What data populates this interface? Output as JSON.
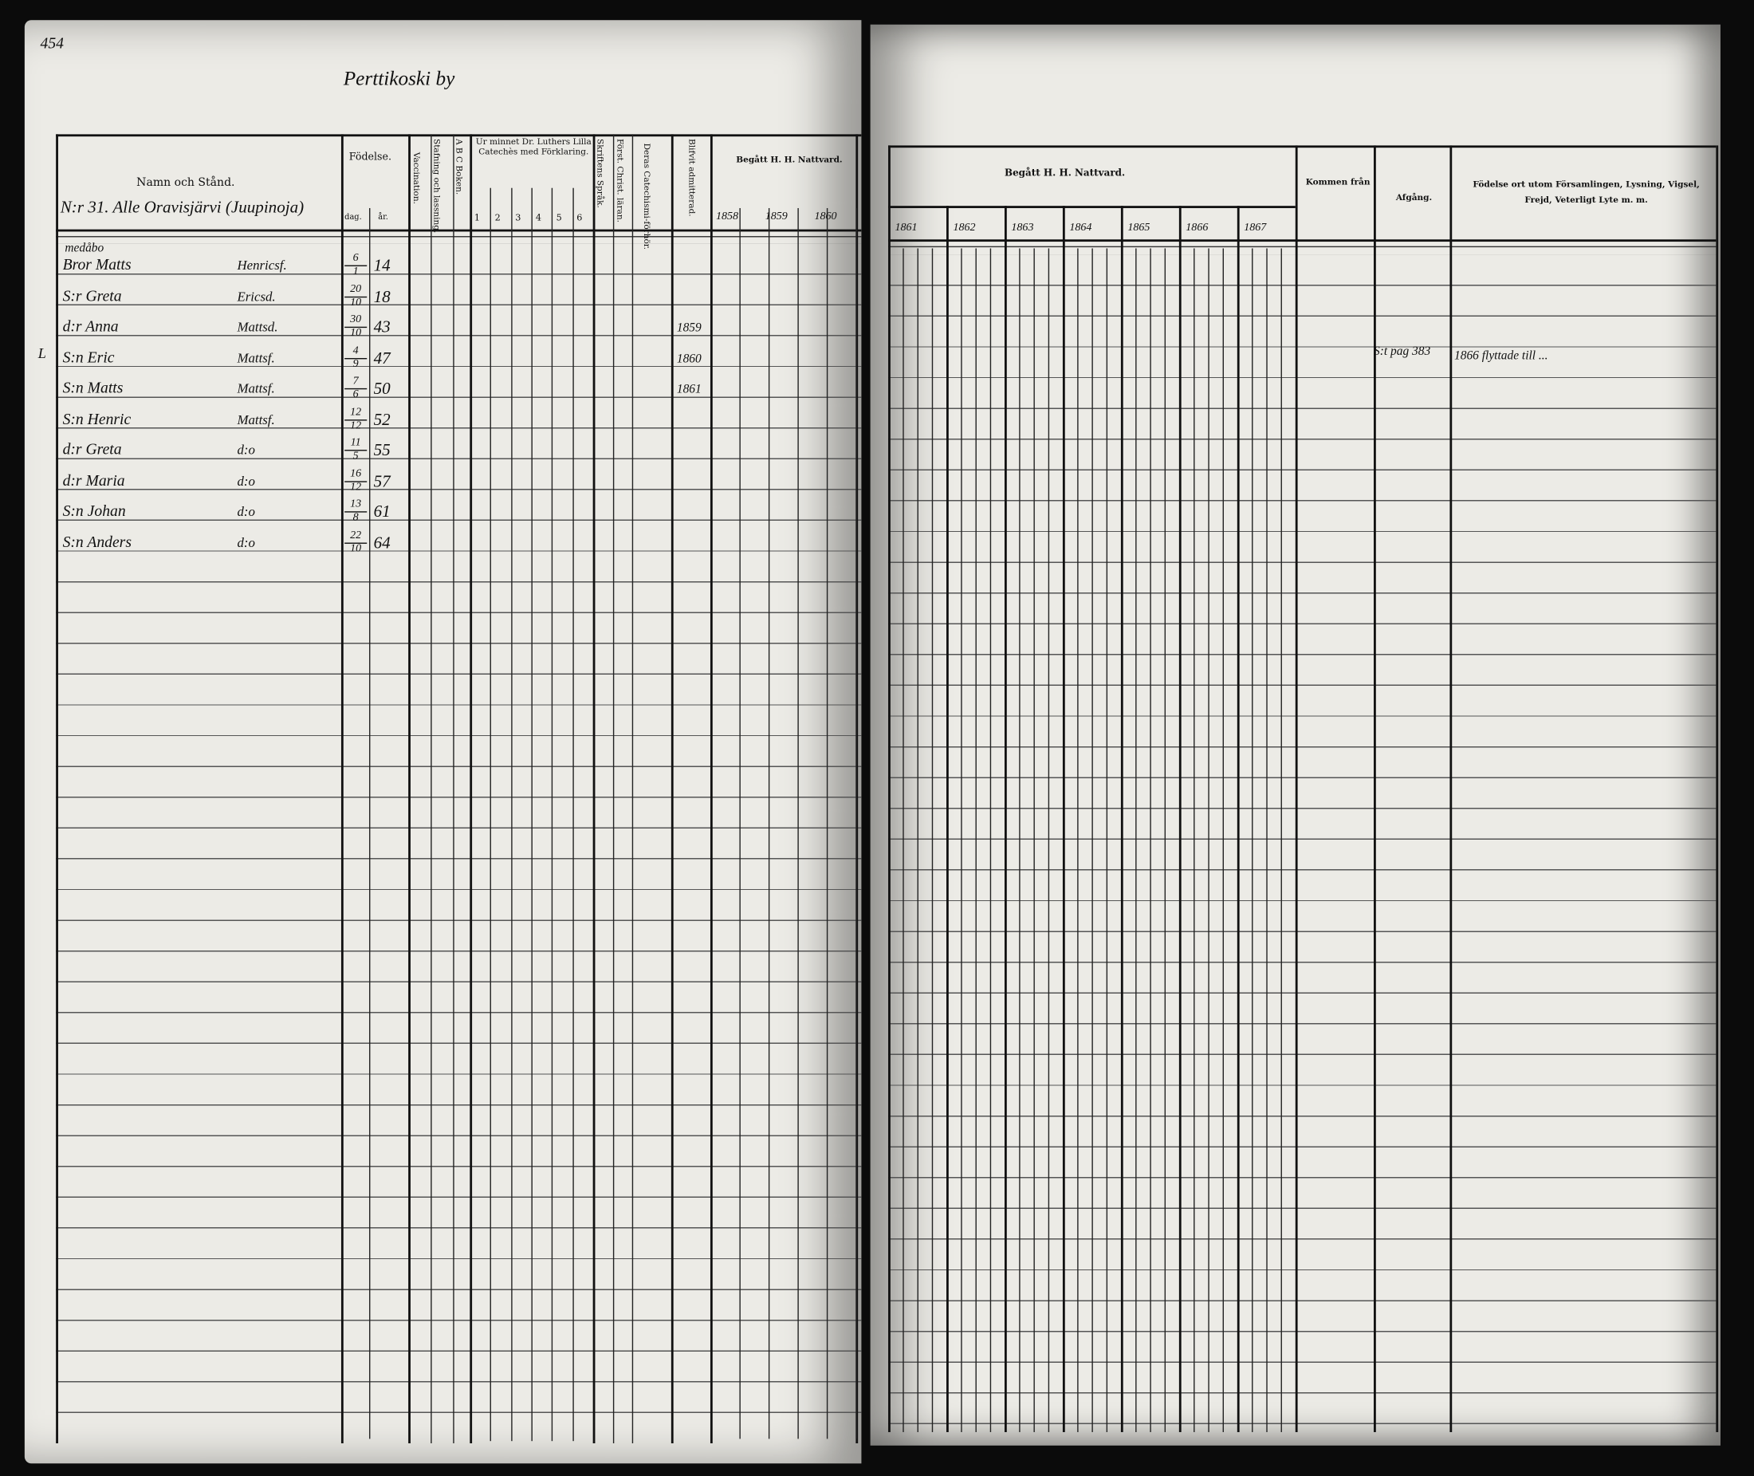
{
  "left_page": {
    "page_number": "454",
    "village_title": "Perttikoski by",
    "headers": {
      "name": "Namn och Stånd.",
      "birth": "Födelse.",
      "birth_day": "dag.",
      "birth_year": "år.",
      "vaccination": "Vaccination.",
      "spelling": "Stafning och lassning.",
      "abc": "A B C Boken.",
      "catechism": "Ur minnet Dr. Luthers Lilla Catechès med Förklaring.",
      "catechism_parts": [
        "1",
        "2",
        "3",
        "4",
        "5",
        "6"
      ],
      "scripture": "Skriftens Språk.",
      "christian_teaching": "Först. Christ. läran.",
      "their_catechism": "Deras Catechismi-förhör.",
      "admitted": "Blifvit admitterad.",
      "communion": "Begått H. H. Nattvard.",
      "years": [
        "1858",
        "1859",
        "1860"
      ]
    },
    "household_heading": "N:r 31. Alle Oravisjärvi (Juupinoja)",
    "household_note": "medåbo",
    "margin_mark": "L",
    "entries": [
      {
        "name": "Bror Matts",
        "stand": "Henricsf.",
        "day": "6",
        "month": "1",
        "year": "14",
        "admitted": ""
      },
      {
        "name": "S:r Greta",
        "stand": "Ericsd.",
        "day": "20",
        "month": "10",
        "year": "18",
        "admitted": ""
      },
      {
        "name": "d:r Anna",
        "stand": "Mattsd.",
        "day": "30",
        "month": "10",
        "year": "43",
        "admitted": "1859"
      },
      {
        "name": "S:n Eric",
        "stand": "Mattsf.",
        "day": "4",
        "month": "9",
        "year": "47",
        "admitted": "1860"
      },
      {
        "name": "S:n Matts",
        "stand": "Mattsf.",
        "day": "7",
        "month": "6",
        "year": "50",
        "admitted": "1861"
      },
      {
        "name": "S:n Henric",
        "stand": "Mattsf.",
        "day": "12",
        "month": "12",
        "year": "52",
        "admitted": ""
      },
      {
        "name": "d:r Greta",
        "stand": "d:o",
        "day": "11",
        "month": "5",
        "year": "55",
        "admitted": ""
      },
      {
        "name": "d:r Maria",
        "stand": "d:o",
        "day": "16",
        "month": "12",
        "year": "57",
        "admitted": ""
      },
      {
        "name": "S:n Johan",
        "stand": "d:o",
        "day": "13",
        "month": "8",
        "year": "61",
        "admitted": ""
      },
      {
        "name": "S:n Anders",
        "stand": "d:o",
        "day": "22",
        "month": "10",
        "year": "64",
        "admitted": ""
      }
    ]
  },
  "right_page": {
    "headers": {
      "communion": "Begått H. H. Nattvard.",
      "years": [
        "1861",
        "1862",
        "1863",
        "1864",
        "1865",
        "1866",
        "1867"
      ],
      "came_from": "Kommen från",
      "departure": "Afgång.",
      "remarks": "Födelse ort utom Församlingen, Lysning, Vigsel, Frejd, Veterligt Lyte m. m."
    },
    "departure_entry": "S:t pag 383",
    "remarks_entry": "1866 flyttade till ..."
  }
}
